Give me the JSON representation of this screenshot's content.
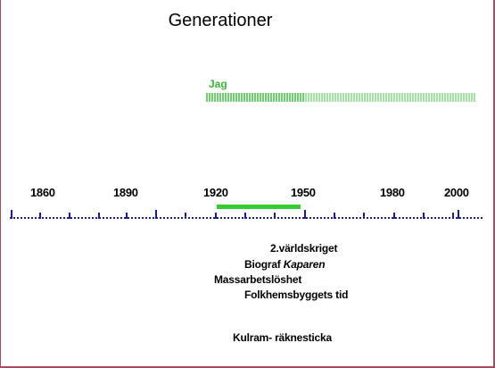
{
  "title": "Generationer",
  "jag_label": "Jag",
  "timeline": {
    "years": [
      "1860",
      "1890",
      "1920",
      "1950",
      "1980",
      "2000"
    ]
  },
  "events": {
    "world_war": "2.världskriget",
    "biograf_prefix": "Biograf ",
    "biograf_title": "Kaparen",
    "unemployment": "Massarbetslöshet",
    "folkhem": "Folkhemsbyggets tid",
    "kulram": "Kulram- räknesticka"
  },
  "colors": {
    "accent_green": "#33cc33",
    "timeline_blue": "#1a1aa0",
    "border": "#b04a5a"
  }
}
